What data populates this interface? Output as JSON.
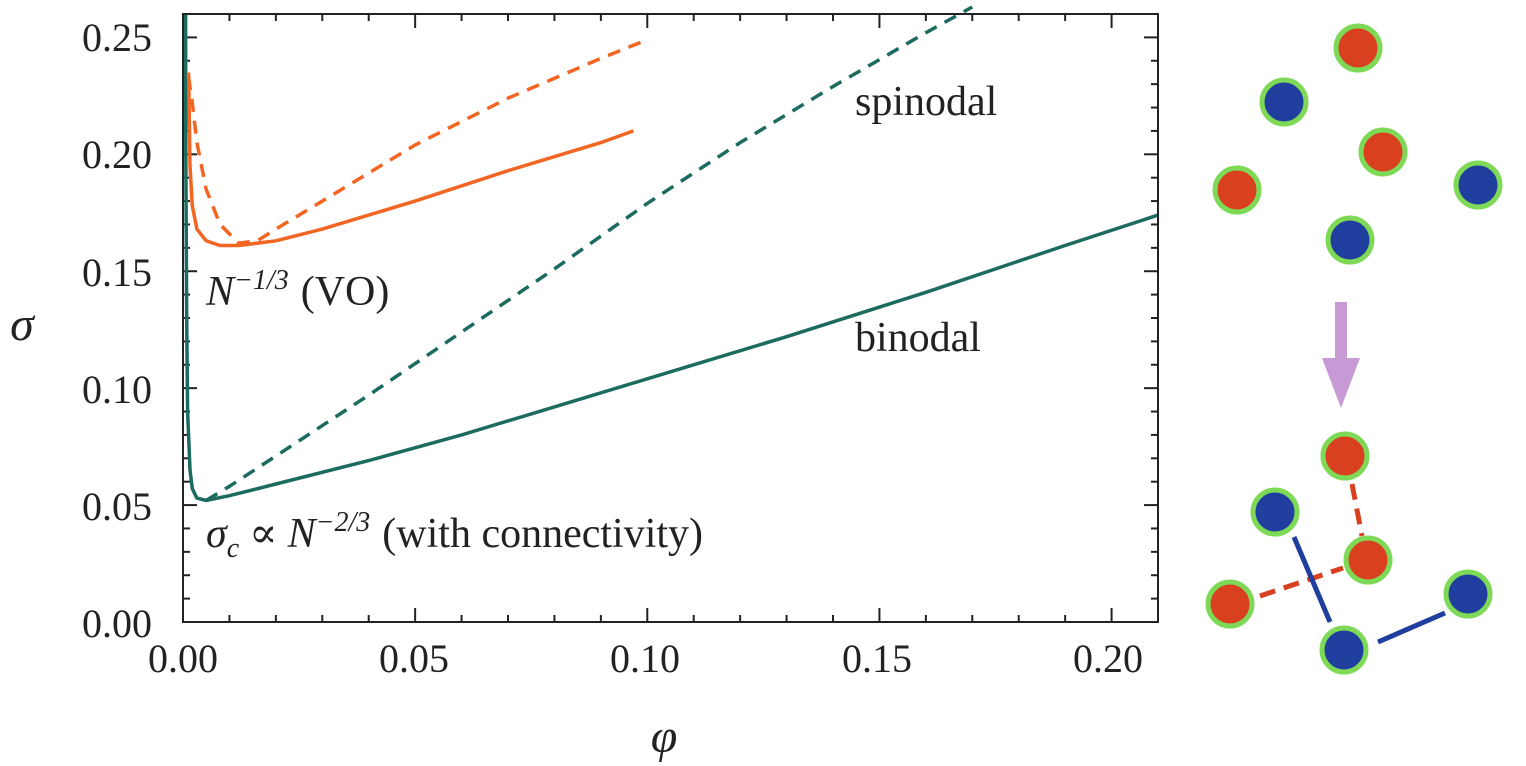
{
  "chart_data": {
    "type": "line",
    "xlabel": "φ",
    "ylabel": "σ",
    "xlim": [
      0,
      0.21
    ],
    "ylim": [
      0,
      0.26
    ],
    "xticks": [
      "0.00",
      "0.05",
      "0.10",
      "0.15",
      "0.20"
    ],
    "yticks": [
      "0.00",
      "0.05",
      "0.10",
      "0.15",
      "0.20",
      "0.25"
    ],
    "grid": false,
    "series": [
      {
        "key": "teal_binodal",
        "style": "solid",
        "color": "#1c6b5f",
        "x": [
          0.00055,
          0.0006,
          0.0008,
          0.001,
          0.0015,
          0.002,
          0.003,
          0.005,
          0.01,
          0.02,
          0.04,
          0.06,
          0.08,
          0.1,
          0.13,
          0.16,
          0.19,
          0.21
        ],
        "y": [
          0.26,
          0.2,
          0.13,
          0.09,
          0.065,
          0.057,
          0.053,
          0.052,
          0.054,
          0.059,
          0.069,
          0.08,
          0.092,
          0.104,
          0.122,
          0.141,
          0.161,
          0.174
        ]
      },
      {
        "key": "teal_spinodal",
        "style": "dashed",
        "color": "#1c6b5f",
        "x": [
          0.005,
          0.01,
          0.02,
          0.04,
          0.06,
          0.08,
          0.1,
          0.12,
          0.14,
          0.16,
          0.17
        ],
        "y": [
          0.052,
          0.058,
          0.071,
          0.097,
          0.124,
          0.151,
          0.179,
          0.205,
          0.229,
          0.252,
          0.263
        ]
      },
      {
        "key": "orange_binodal",
        "style": "solid",
        "color": "#f26522",
        "x": [
          0.0012,
          0.0015,
          0.002,
          0.003,
          0.005,
          0.008,
          0.012,
          0.02,
          0.03,
          0.05,
          0.07,
          0.09,
          0.097
        ],
        "y": [
          0.235,
          0.195,
          0.178,
          0.168,
          0.163,
          0.161,
          0.161,
          0.163,
          0.168,
          0.18,
          0.193,
          0.205,
          0.21
        ]
      },
      {
        "key": "orange_spinodal",
        "style": "dashed",
        "color": "#f26522",
        "x": [
          0.0012,
          0.002,
          0.003,
          0.005,
          0.008,
          0.012,
          0.016,
          0.02,
          0.03,
          0.05,
          0.07,
          0.09,
          0.1
        ],
        "y": [
          0.233,
          0.222,
          0.205,
          0.185,
          0.17,
          0.162,
          0.163,
          0.168,
          0.18,
          0.204,
          0.224,
          0.241,
          0.249
        ]
      }
    ],
    "annotations": {
      "spinodal": "spinodal",
      "binodal": "binodal",
      "vo_base": "N",
      "vo_exp": "−1/3",
      "vo_rest": "(VO)",
      "conn_sigma": "σ",
      "conn_sub": "c",
      "conn_prop": "∝",
      "conn_base": "N",
      "conn_exp": "−2/3",
      "conn_rest": "(with connectivity)"
    }
  },
  "schematic": {
    "particle_fill_red": "#d8401f",
    "particle_fill_blue": "#1f3e9e",
    "particle_ring": "#7ed957",
    "arrow_color": "#c79ad6",
    "top_particles": [
      "red",
      "blue",
      "red",
      "red",
      "blue",
      "blue"
    ],
    "bottom_particles": [
      "red",
      "blue",
      "red",
      "red",
      "blue",
      "blue"
    ],
    "bonds": [
      "red-dashed",
      "red-dashed",
      "blue-solid",
      "blue-solid"
    ]
  }
}
